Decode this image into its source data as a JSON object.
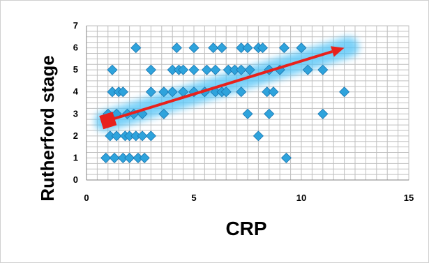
{
  "chart_data": {
    "type": "scatter",
    "xlabel": "CRP",
    "ylabel": "Rutherford stage",
    "xlim": [
      0,
      15
    ],
    "ylim": [
      0,
      7
    ],
    "x_ticks": [
      "0",
      "5",
      "10",
      "15"
    ],
    "y_ticks": [
      "0",
      "1",
      "2",
      "3",
      "4",
      "5",
      "6",
      "7"
    ],
    "grid": "on",
    "legend": "none",
    "marker_color": "#2ea3dc",
    "trend_color": "#e8211c",
    "glow_color": "#4fc3f7",
    "trend_arrow": {
      "from": [
        1.0,
        2.7
      ],
      "to": [
        12.0,
        6.0
      ]
    },
    "points": [
      [
        0.9,
        1
      ],
      [
        1.3,
        1
      ],
      [
        1.7,
        1
      ],
      [
        2.0,
        1
      ],
      [
        2.4,
        1
      ],
      [
        2.7,
        1
      ],
      [
        9.3,
        1
      ],
      [
        1.1,
        2
      ],
      [
        1.4,
        2
      ],
      [
        1.8,
        2
      ],
      [
        2.0,
        2
      ],
      [
        2.3,
        2
      ],
      [
        2.6,
        2
      ],
      [
        3.0,
        2
      ],
      [
        8.0,
        2
      ],
      [
        1.0,
        3
      ],
      [
        1.4,
        3
      ],
      [
        1.9,
        3
      ],
      [
        2.2,
        3
      ],
      [
        2.6,
        3
      ],
      [
        3.6,
        3
      ],
      [
        7.5,
        3
      ],
      [
        8.5,
        3
      ],
      [
        11.0,
        3
      ],
      [
        1.2,
        4
      ],
      [
        1.5,
        4
      ],
      [
        1.7,
        4
      ],
      [
        3.0,
        4
      ],
      [
        3.6,
        4
      ],
      [
        4.0,
        4
      ],
      [
        4.5,
        4
      ],
      [
        5.0,
        4
      ],
      [
        5.5,
        4
      ],
      [
        6.0,
        4
      ],
      [
        6.3,
        4
      ],
      [
        6.5,
        4
      ],
      [
        7.2,
        4
      ],
      [
        8.4,
        4
      ],
      [
        8.7,
        4
      ],
      [
        12.0,
        4
      ],
      [
        1.2,
        5
      ],
      [
        3.0,
        5
      ],
      [
        4.0,
        5
      ],
      [
        4.3,
        5
      ],
      [
        4.5,
        5
      ],
      [
        5.0,
        5
      ],
      [
        5.6,
        5
      ],
      [
        6.0,
        5
      ],
      [
        6.6,
        5
      ],
      [
        6.9,
        5
      ],
      [
        7.2,
        5
      ],
      [
        7.6,
        5
      ],
      [
        8.5,
        5
      ],
      [
        9.0,
        5
      ],
      [
        10.3,
        5
      ],
      [
        11.0,
        5
      ],
      [
        2.3,
        6
      ],
      [
        4.2,
        6
      ],
      [
        5.0,
        6
      ],
      [
        5.9,
        6
      ],
      [
        6.3,
        6
      ],
      [
        7.2,
        6
      ],
      [
        7.5,
        6
      ],
      [
        8.0,
        6
      ],
      [
        8.2,
        6
      ],
      [
        9.2,
        6
      ],
      [
        10.0,
        6
      ]
    ]
  }
}
